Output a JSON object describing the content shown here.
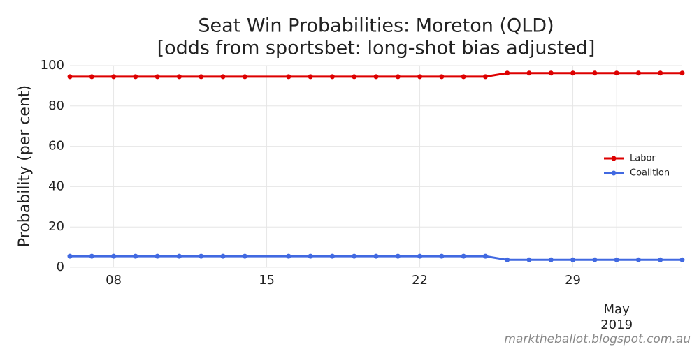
{
  "chart_data": {
    "type": "line",
    "title": "Seat Win Probabilities: Moreton (QLD)",
    "subtitle": "[odds from sportsbet: long-shot bias adjusted]",
    "y_label": "Probability (per cent)",
    "footer": "marktheballot.blogspot.com.au",
    "x": [
      "2019-04-06",
      "2019-04-07",
      "2019-04-08",
      "2019-04-09",
      "2019-04-10",
      "2019-04-11",
      "2019-04-12",
      "2019-04-13",
      "2019-04-14",
      "2019-04-16",
      "2019-04-17",
      "2019-04-18",
      "2019-04-19",
      "2019-04-20",
      "2019-04-21",
      "2019-04-22",
      "2019-04-23",
      "2019-04-24",
      "2019-04-25",
      "2019-04-26",
      "2019-04-27",
      "2019-04-28",
      "2019-04-29",
      "2019-04-30",
      "2019-05-01",
      "2019-05-02",
      "2019-05-03",
      "2019-05-04"
    ],
    "series": [
      {
        "name": "Labor",
        "color": "#dd0000",
        "values": [
          94.5,
          94.5,
          94.5,
          94.5,
          94.5,
          94.5,
          94.5,
          94.5,
          94.5,
          94.5,
          94.5,
          94.5,
          94.5,
          94.5,
          94.5,
          94.5,
          94.5,
          94.5,
          94.5,
          96.3,
          96.3,
          96.3,
          96.3,
          96.3,
          96.3,
          96.3,
          96.3,
          96.3
        ]
      },
      {
        "name": "Coalition",
        "color": "#4169e1",
        "values": [
          5.5,
          5.5,
          5.5,
          5.5,
          5.5,
          5.5,
          5.5,
          5.5,
          5.5,
          5.5,
          5.5,
          5.5,
          5.5,
          5.5,
          5.5,
          5.5,
          5.5,
          5.5,
          5.5,
          3.7,
          3.7,
          3.7,
          3.7,
          3.7,
          3.7,
          3.7,
          3.7,
          3.7
        ]
      }
    ],
    "xlim": [
      "2019-04-06",
      "2019-05-04"
    ],
    "xticks": [
      {
        "value": "2019-04-08",
        "label": "08"
      },
      {
        "value": "2019-04-15",
        "label": "15"
      },
      {
        "value": "2019-04-22",
        "label": "22"
      },
      {
        "value": "2019-04-29",
        "label": "29"
      }
    ],
    "xticks_minor": [
      {
        "value": "2019-05-01",
        "label": "May 2019"
      }
    ],
    "ylim": [
      0,
      100
    ],
    "yticks": [
      0,
      20,
      40,
      60,
      80,
      100
    ],
    "grid": true,
    "legend": "right"
  }
}
